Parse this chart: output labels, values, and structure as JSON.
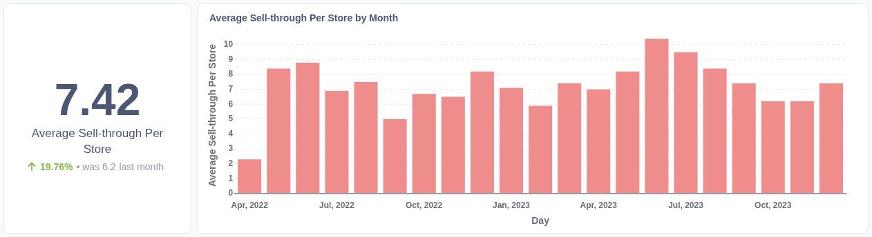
{
  "chart_data": [
    {
      "type": "other",
      "title": "Average Sell-through Per Store",
      "annotations": [
        "7.42",
        "19.76%",
        "• was 6.2",
        "last month"
      ]
    },
    {
      "type": "bar",
      "title": "Average Sell-through Per Store by Month",
      "xlabel": "Day",
      "ylabel": "Average Sell-through Per Store",
      "categories": [
        "Apr, 2022",
        null,
        null,
        "Jul, 2022",
        null,
        null,
        "Oct, 2022",
        null,
        null,
        "Jan, 2023",
        null,
        null,
        "Apr, 2023",
        null,
        null,
        "Jul, 2023",
        null,
        null,
        "Oct, 2023",
        null,
        null
      ],
      "values": [
        2.3,
        8.4,
        8.8,
        6.9,
        7.5,
        5.0,
        6.7,
        6.5,
        8.2,
        7.1,
        5.9,
        7.4,
        7.0,
        8.2,
        10.4,
        9.5,
        8.4,
        7.4,
        6.2,
        6.2,
        7.4
      ],
      "color": "#ef8c8c",
      "ylim": [
        0,
        10.5
      ],
      "yticks": [
        0,
        1,
        2,
        3,
        4,
        5,
        6,
        7,
        8,
        9,
        10
      ],
      "grid": "y",
      "legend": false
    }
  ]
}
